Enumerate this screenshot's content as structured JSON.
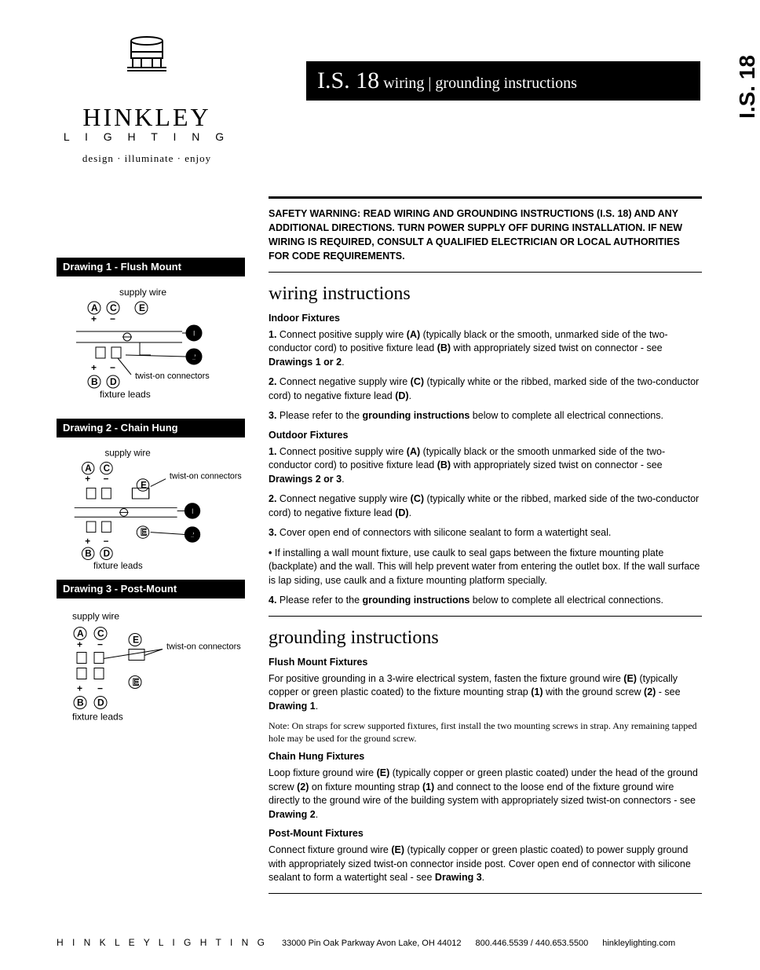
{
  "side_tab": "I.S. 18",
  "brand": {
    "name": "HINKLEY",
    "sub": "L I G H T I N G",
    "tagline": "design · illuminate · enjoy"
  },
  "title": {
    "big": "I.S. 18",
    "rest": " wiring | grounding instructions"
  },
  "warning": "SAFETY WARNING: READ WIRING AND GROUNDING INSTRUCTIONS (I.S. 18) AND ANY ADDITIONAL DIRECTIONS. TURN POWER SUPPLY OFF DURING INSTALLATION. IF NEW WIRING IS REQUIRED, CONSULT A QUALIFIED ELECTRICIAN OR LOCAL AUTHORITIES FOR CODE REQUIREMENTS.",
  "wiring": {
    "title": "wiring instructions",
    "indoor_head": "Indoor Fixtures",
    "indoor": [
      {
        "n": "1.",
        "pre": "Connect positive supply wire ",
        "b1": "(A)",
        "mid": " (typically black or the smooth, unmarked side of the two-conductor cord) to positive fixture lead ",
        "b2": "(B)",
        "post": " with appropriately sized twist on connector - see ",
        "b3": "Drawings 1 or 2",
        "end": "."
      },
      {
        "n": "2.",
        "pre": "Connect negative supply wire ",
        "b1": "(C)",
        "mid": " (typically white or the ribbed, marked side of the two-conductor cord) to negative fixture lead ",
        "b2": "(D)",
        "post": "",
        "b3": "",
        "end": "."
      },
      {
        "n": "3.",
        "pre": "Please refer to the ",
        "b1": "grounding instructions",
        "mid": " below to complete all electrical connections.",
        "b2": "",
        "post": "",
        "b3": "",
        "end": ""
      }
    ],
    "outdoor_head": "Outdoor Fixtures",
    "outdoor": [
      {
        "n": "1.",
        "pre": "Connect positive supply wire ",
        "b1": "(A)",
        "mid": " (typically black or the smooth unmarked side of the two-conductor cord) to positive fixture lead ",
        "b2": "(B)",
        "post": " with appropriately sized twist on connector - see ",
        "b3": "Drawings 2 or 3",
        "end": "."
      },
      {
        "n": "2.",
        "pre": "Connect negative supply wire ",
        "b1": "(C)",
        "mid": " (typically white or the ribbed, marked side of the two-conductor cord) to negative fixture lead ",
        "b2": "(D)",
        "post": "",
        "b3": "",
        "end": "."
      },
      {
        "n": "3.",
        "pre": "Cover open end of connectors with silicone sealant to form a watertight seal.",
        "b1": "",
        "mid": "",
        "b2": "",
        "post": "",
        "b3": "",
        "end": ""
      },
      {
        "n": "•",
        "pre": "If installing a wall mount fixture, use caulk to seal gaps between the fixture mounting plate (backplate) and the wall. This will help prevent water from entering the outlet box. If the wall surface is lap siding, use caulk and a fixture mounting platform specially.",
        "b1": "",
        "mid": "",
        "b2": "",
        "post": "",
        "b3": "",
        "end": ""
      },
      {
        "n": "4.",
        "pre": "Please refer to the ",
        "b1": "grounding instructions",
        "mid": " below to complete all electrical connections.",
        "b2": "",
        "post": "",
        "b3": "",
        "end": ""
      }
    ]
  },
  "grounding": {
    "title": "grounding instructions",
    "flush_head": "Flush Mount Fixtures",
    "flush": {
      "pre": "For positive grounding in a 3-wire electrical system, fasten the fixture ground wire ",
      "b1": "(E)",
      "mid": " (typically copper or green plastic coated) to the fixture mounting strap ",
      "b2": "(1)",
      "post": " with the ground screw ",
      "b3": "(2)",
      "end": " - see ",
      "b4": "Drawing 1",
      "end2": "."
    },
    "flush_note": "Note: On straps for screw supported fixtures, first install the two mounting screws in strap. Any remaining tapped hole may be used for the ground screw.",
    "chain_head": "Chain Hung Fixtures",
    "chain": {
      "pre": "Loop fixture ground wire ",
      "b1": "(E)",
      "mid": " (typically copper or green plastic coated) under the head of the ground screw ",
      "b2": "(2)",
      "post": " on fixture mounting strap ",
      "b3": "(1)",
      "end": " and connect to the loose end of the fixture ground wire directly to the ground wire of the building system with appropriately sized twist-on connectors - see ",
      "b4": "Drawing 2",
      "end2": "."
    },
    "post_head": "Post-Mount Fixtures",
    "post": {
      "pre": "Connect fixture ground wire ",
      "b1": "(E)",
      "mid": " (typically copper or green plastic coated) to power supply ground with appropriately sized twist-on connector inside post. Cover open end of connector with silicone sealant to form a watertight seal - see ",
      "b4": "Drawing 3",
      "end2": "."
    }
  },
  "drawings": {
    "d1": {
      "title": "Drawing 1 - Flush Mount",
      "supply": "supply wire",
      "fixture": "fixture leads",
      "twist": "twist-on connectors"
    },
    "d2": {
      "title": "Drawing 2 - Chain Hung",
      "supply": "supply wire",
      "fixture": "fixture leads",
      "twist": "twist-on connectors"
    },
    "d3": {
      "title": "Drawing 3 - Post-Mount",
      "supply": "supply wire",
      "fixture": "fixture leads",
      "twist": "twist-on connectors"
    }
  },
  "labels": {
    "A": "A",
    "B": "B",
    "C": "C",
    "D": "D",
    "E": "E",
    "one": "1",
    "two": "2",
    "plus": "+",
    "minus": "−"
  },
  "footer": {
    "brand": "H I N K L E Y   L I G H T I N G",
    "addr": "33000 Pin Oak Parkway   Avon Lake, OH  44012",
    "phone": "800.446.5539 / 440.653.5500",
    "url": "hinkleylighting.com"
  },
  "style": {
    "black": "#000000",
    "white": "#ffffff",
    "body_font_size": 12.5,
    "title_font_size": 30,
    "section_title_size": 24
  }
}
